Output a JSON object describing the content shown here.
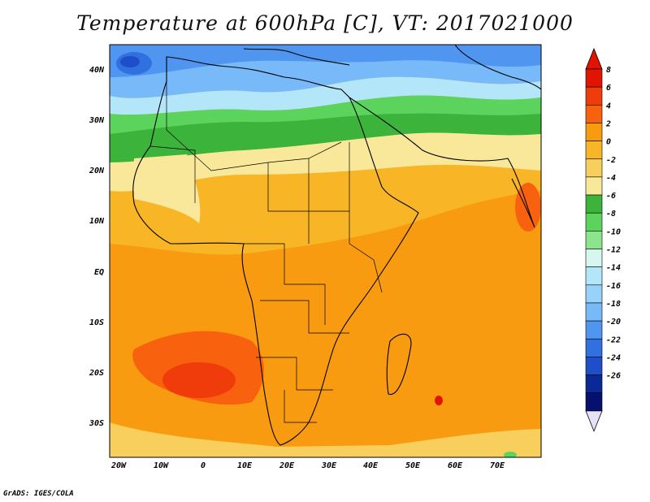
{
  "title": "Temperature at 600hPa [C], VT: 2017021000",
  "footer": "GrADS: IGES/COLA",
  "map": {
    "lat_labels": [
      "40N",
      "30N",
      "20N",
      "10N",
      "EQ",
      "10S",
      "20S",
      "30S"
    ],
    "lon_labels": [
      "20W",
      "10W",
      "0",
      "10E",
      "20E",
      "30E",
      "40E",
      "50E",
      "60E",
      "70E"
    ],
    "extent": {
      "lon_min": -23,
      "lon_max": 80,
      "lat_min": -37,
      "lat_max": 45
    }
  },
  "colorbar": {
    "labels": [
      "8",
      "6",
      "4",
      "2",
      "0",
      "-2",
      "-4",
      "-6",
      "-8",
      "-10",
      "-12",
      "-14",
      "-16",
      "-18",
      "-20",
      "-22",
      "-24",
      "-26"
    ],
    "colors": [
      "#e11400",
      "#f03c0a",
      "#f8620f",
      "#f89b10",
      "#f8b526",
      "#f8ce5c",
      "#fae89a",
      "#3cb43c",
      "#5cd35c",
      "#8ce58c",
      "#d8f6f0",
      "#b4e6fa",
      "#96d2fa",
      "#78b9fa",
      "#5096f0",
      "#3070e0",
      "#1e4fc8",
      "#0a2896",
      "#06106e"
    ],
    "top_cap_color": "#e11400",
    "bottom_cap_color": "#e6e0f8"
  }
}
